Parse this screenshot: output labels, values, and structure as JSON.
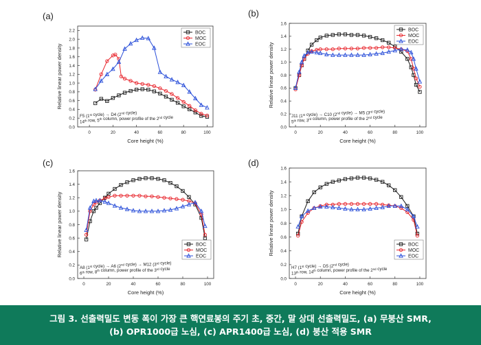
{
  "caption": {
    "line1": "그림 3. 선출력밀도 변동 폭이 가장 큰 핵연료봉의 주기 초, 중간, 말 상대 선출력밀도, (a) 무붕산 SMR,",
    "line2": "(b) OPR1000급 노심, (c) APR1400급 노심, (d) 붕산 적용 SMR"
  },
  "colors": {
    "BOC": "#1a1a1a",
    "MOC": "#e8232a",
    "EOC": "#2a4fd9"
  },
  "chart_data": [
    {
      "panel": "(a)",
      "type": "line",
      "xlabel": "Core height (%)",
      "ylabel": "Relative linear power density",
      "xlim": [
        -10,
        105
      ],
      "ylim": [
        0.0,
        2.3
      ],
      "xticks": [
        "0",
        "20",
        "40",
        "60",
        "80",
        "100"
      ],
      "yticks": [
        "0.0",
        "0.2",
        "0.4",
        "0.6",
        "0.8",
        "1.0",
        "1.2",
        "1.4",
        "1.6",
        "1.8",
        "2.0",
        "2.2"
      ],
      "annotation": [
        "F5 (1st cycle) → D4 (2nd cycle)",
        "14th row, 5th column, power profile of the 2nd cycle"
      ],
      "legend": "top-right",
      "series": [
        {
          "name": "BOC",
          "marker": "square",
          "x": [
            5,
            10,
            15,
            20,
            25,
            30,
            35,
            40,
            45,
            50,
            55,
            60,
            65,
            70,
            75,
            80,
            85,
            90,
            95,
            100
          ],
          "y": [
            0.54,
            0.64,
            0.59,
            0.66,
            0.72,
            0.78,
            0.82,
            0.85,
            0.86,
            0.85,
            0.81,
            0.76,
            0.69,
            0.62,
            0.55,
            0.47,
            0.4,
            0.33,
            0.25,
            0.23
          ]
        },
        {
          "name": "MOC",
          "marker": "circle",
          "x": [
            5,
            10,
            15,
            20,
            22,
            25,
            27,
            30,
            35,
            40,
            45,
            50,
            55,
            60,
            65,
            70,
            75,
            80,
            85,
            90,
            95,
            100
          ],
          "y": [
            0.85,
            1.2,
            1.5,
            1.63,
            1.65,
            1.55,
            1.15,
            1.1,
            1.05,
            1.0,
            0.98,
            0.96,
            0.93,
            0.88,
            0.82,
            0.75,
            0.66,
            0.57,
            0.48,
            0.38,
            0.3,
            0.26
          ]
        },
        {
          "name": "EOC",
          "marker": "triangle",
          "x": [
            5,
            10,
            15,
            20,
            25,
            30,
            35,
            40,
            45,
            50,
            55,
            60,
            65,
            70,
            75,
            80,
            85,
            90,
            95,
            100
          ],
          "y": [
            0.86,
            1.05,
            1.2,
            1.32,
            1.48,
            1.78,
            1.9,
            1.98,
            2.03,
            2.02,
            1.8,
            1.25,
            1.15,
            1.08,
            1.02,
            0.95,
            0.8,
            0.65,
            0.5,
            0.44
          ]
        }
      ]
    },
    {
      "panel": "(b)",
      "type": "line",
      "xlabel": "Core height (%)",
      "ylabel": "Relative linear power density",
      "xlim": [
        -5,
        105
      ],
      "ylim": [
        0.0,
        1.6
      ],
      "xticks": [
        "0",
        "20",
        "40",
        "60",
        "80",
        "100"
      ],
      "yticks": [
        "0.0",
        "0.2",
        "0.4",
        "0.6",
        "0.8",
        "1.0",
        "1.2",
        "1.4",
        "1.6"
      ],
      "annotation": [
        "J11 (1st cycle) → C10 (2nd cycle) → M5 (3rd cycle)",
        "5th row, 3rd column, power profile of the 2nd cycle"
      ],
      "legend": "top-right",
      "series": [
        {
          "name": "BOC",
          "marker": "square",
          "x": [
            0,
            3,
            5,
            7,
            10,
            13,
            17,
            20,
            25,
            30,
            35,
            40,
            45,
            50,
            55,
            60,
            65,
            70,
            75,
            80,
            85,
            90,
            93,
            95,
            97,
            100
          ],
          "y": [
            0.6,
            0.8,
            0.95,
            1.05,
            1.18,
            1.27,
            1.34,
            1.38,
            1.41,
            1.42,
            1.43,
            1.43,
            1.42,
            1.42,
            1.41,
            1.39,
            1.37,
            1.34,
            1.3,
            1.24,
            1.16,
            1.05,
            0.92,
            0.8,
            0.65,
            0.54
          ]
        },
        {
          "name": "MOC",
          "marker": "circle",
          "x": [
            0,
            3,
            5,
            7,
            10,
            13,
            17,
            20,
            25,
            30,
            35,
            40,
            45,
            50,
            55,
            60,
            65,
            70,
            75,
            80,
            85,
            90,
            93,
            95,
            97,
            100
          ],
          "y": [
            0.58,
            0.8,
            0.95,
            1.05,
            1.13,
            1.17,
            1.19,
            1.2,
            1.2,
            1.2,
            1.21,
            1.21,
            1.21,
            1.21,
            1.22,
            1.22,
            1.22,
            1.23,
            1.23,
            1.22,
            1.2,
            1.17,
            1.05,
            0.9,
            0.75,
            0.62
          ]
        },
        {
          "name": "EOC",
          "marker": "triangle",
          "x": [
            0,
            3,
            5,
            7,
            10,
            13,
            17,
            20,
            25,
            30,
            35,
            40,
            45,
            50,
            55,
            60,
            65,
            70,
            75,
            80,
            85,
            90,
            93,
            95,
            97,
            100
          ],
          "y": [
            0.6,
            0.85,
            1.0,
            1.1,
            1.15,
            1.16,
            1.15,
            1.14,
            1.12,
            1.11,
            1.11,
            1.11,
            1.11,
            1.11,
            1.11,
            1.12,
            1.13,
            1.14,
            1.16,
            1.18,
            1.2,
            1.19,
            1.15,
            1.05,
            0.9,
            0.7
          ]
        }
      ]
    },
    {
      "panel": "(c)",
      "type": "line",
      "xlabel": "Core height (%)",
      "ylabel": "Relative linear power density",
      "xlim": [
        -5,
        105
      ],
      "ylim": [
        0.0,
        1.6
      ],
      "xticks": [
        "0",
        "20",
        "40",
        "60",
        "80",
        "100"
      ],
      "yticks": [
        "0.0",
        "0.2",
        "0.4",
        "0.6",
        "0.8",
        "1.0",
        "1.2",
        "1.4",
        "1.6"
      ],
      "annotation": [
        "A8 (1st cycle) → A6 (2nd cycle) → M12 (3rd cycle)",
        "6th row, 8th column, power profile of the 3rd cycle"
      ],
      "legend": "bottom-right",
      "series": [
        {
          "name": "BOC",
          "marker": "square",
          "x": [
            2,
            5,
            8,
            10,
            13,
            17,
            20,
            25,
            30,
            35,
            40,
            45,
            50,
            55,
            60,
            65,
            70,
            75,
            80,
            85,
            90,
            95,
            98
          ],
          "y": [
            0.58,
            0.85,
            1.0,
            1.05,
            1.12,
            1.2,
            1.26,
            1.33,
            1.39,
            1.43,
            1.46,
            1.48,
            1.49,
            1.49,
            1.48,
            1.46,
            1.42,
            1.37,
            1.3,
            1.21,
            1.1,
            0.9,
            0.6
          ]
        },
        {
          "name": "MOC",
          "marker": "circle",
          "x": [
            2,
            5,
            8,
            10,
            13,
            17,
            20,
            25,
            30,
            35,
            40,
            45,
            50,
            55,
            60,
            65,
            70,
            75,
            80,
            85,
            90,
            95,
            98
          ],
          "y": [
            0.65,
            1.0,
            1.1,
            1.13,
            1.16,
            1.19,
            1.21,
            1.23,
            1.23,
            1.23,
            1.23,
            1.23,
            1.22,
            1.22,
            1.21,
            1.2,
            1.19,
            1.18,
            1.17,
            1.15,
            1.12,
            0.95,
            0.65
          ]
        },
        {
          "name": "EOC",
          "marker": "triangle",
          "x": [
            2,
            5,
            8,
            10,
            13,
            17,
            20,
            25,
            30,
            35,
            40,
            45,
            50,
            55,
            60,
            65,
            70,
            75,
            80,
            85,
            90,
            95,
            98
          ],
          "y": [
            0.72,
            1.05,
            1.15,
            1.16,
            1.16,
            1.14,
            1.12,
            1.08,
            1.05,
            1.03,
            1.01,
            1.0,
            1.0,
            1.0,
            1.0,
            1.01,
            1.02,
            1.04,
            1.07,
            1.1,
            1.13,
            1.0,
            0.78
          ]
        }
      ]
    },
    {
      "panel": "(d)",
      "type": "line",
      "xlabel": "Core height (%)",
      "ylabel": "Relative linear power density",
      "xlim": [
        -5,
        105
      ],
      "ylim": [
        0.0,
        1.6
      ],
      "xticks": [
        "0",
        "20",
        "40",
        "60",
        "80",
        "100"
      ],
      "yticks": [
        "0.0",
        "0.2",
        "0.4",
        "0.6",
        "0.8",
        "1.0",
        "1.2",
        "1.4",
        "1.6"
      ],
      "annotation": [
        "H7 (1st cycle) → D5 (2nd cycle)",
        "13th row, 14th column, power profile of the 2nd cycle"
      ],
      "legend": "bottom-right",
      "series": [
        {
          "name": "BOC",
          "marker": "square",
          "x": [
            2,
            5,
            10,
            15,
            20,
            25,
            30,
            35,
            40,
            45,
            50,
            55,
            60,
            65,
            70,
            75,
            80,
            85,
            90,
            95,
            98
          ],
          "y": [
            0.65,
            0.9,
            1.12,
            1.25,
            1.32,
            1.37,
            1.4,
            1.42,
            1.44,
            1.45,
            1.46,
            1.46,
            1.45,
            1.43,
            1.4,
            1.35,
            1.28,
            1.18,
            1.05,
            0.9,
            0.65
          ]
        },
        {
          "name": "MOC",
          "marker": "circle",
          "x": [
            2,
            5,
            10,
            15,
            20,
            25,
            30,
            35,
            40,
            45,
            50,
            55,
            60,
            65,
            70,
            75,
            80,
            85,
            90,
            95,
            98
          ],
          "y": [
            0.62,
            0.82,
            0.95,
            1.02,
            1.05,
            1.07,
            1.07,
            1.08,
            1.08,
            1.08,
            1.08,
            1.08,
            1.08,
            1.08,
            1.07,
            1.06,
            1.05,
            1.02,
            0.96,
            0.85,
            0.62
          ]
        },
        {
          "name": "EOC",
          "marker": "triangle",
          "x": [
            2,
            5,
            10,
            15,
            20,
            25,
            30,
            35,
            40,
            45,
            50,
            55,
            60,
            65,
            70,
            75,
            80,
            85,
            90,
            95,
            98
          ],
          "y": [
            0.75,
            0.9,
            0.98,
            1.02,
            1.04,
            1.04,
            1.03,
            1.02,
            1.01,
            1.0,
            1.0,
            1.0,
            1.01,
            1.02,
            1.03,
            1.05,
            1.05,
            1.05,
            1.0,
            0.9,
            0.75
          ]
        }
      ]
    }
  ]
}
